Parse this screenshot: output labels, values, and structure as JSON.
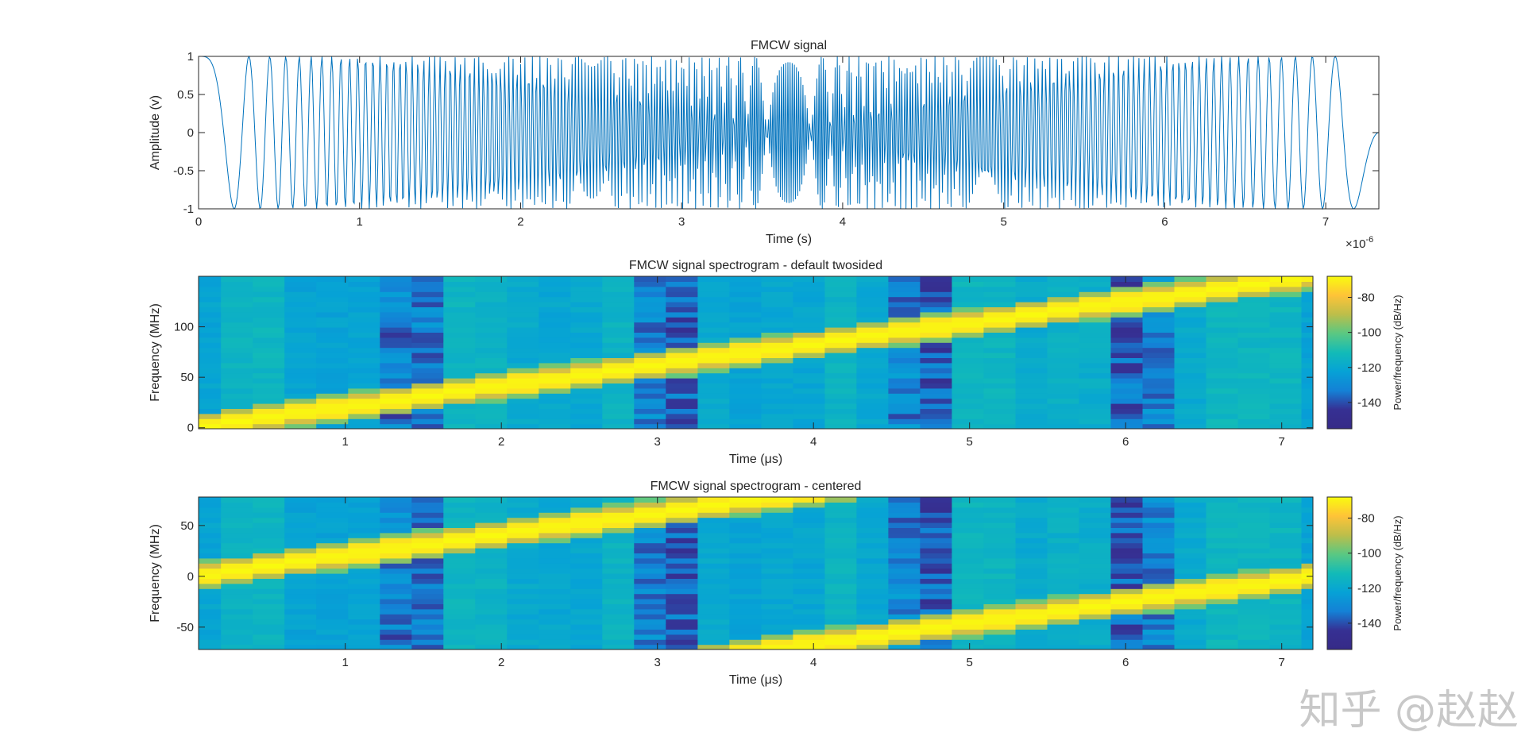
{
  "chart_data": [
    {
      "type": "line",
      "title": "FMCW signal",
      "xlabel": "Time (s)",
      "ylabel": "Amplitude (v)",
      "x_exponent_label": "×10",
      "x_exponent": "-6",
      "xlim": [
        0,
        7.33
      ],
      "ylim": [
        -1,
        1
      ],
      "xticks": [
        "0",
        "1",
        "2",
        "3",
        "4",
        "5",
        "6",
        "7"
      ],
      "yticks": [
        "-1",
        "-0.5",
        "0",
        "0.5",
        "1"
      ],
      "series_color": "#0072BD",
      "signal": {
        "kind": "linear chirp cosine",
        "start_freq_mhz": 0,
        "end_freq_mhz": 150,
        "duration_us": 7.33,
        "sample_rate_mhz": 150
      }
    },
    {
      "type": "heatmap",
      "title": "FMCW signal spectrogram - default twosided",
      "xlabel": "Time (μs)",
      "ylabel": "Frequency (MHz)",
      "xlim": [
        0.06,
        7.2
      ],
      "ylim": [
        -1,
        150
      ],
      "xticks": [
        "1",
        "2",
        "3",
        "4",
        "5",
        "6",
        "7"
      ],
      "yticks": [
        "0",
        "50",
        "100"
      ],
      "ridge": {
        "start_time_us": 0,
        "start_freq_mhz": 0,
        "end_time_us": 7.2,
        "end_freq_mhz": 150
      },
      "colorbar": {
        "label": "Power/frequency (dB/Hz)",
        "range": [
          -155,
          -68
        ],
        "ticks": [
          "-80",
          "-100",
          "-120",
          "-140"
        ],
        "colormap": "parula"
      }
    },
    {
      "type": "heatmap",
      "title": "FMCW signal spectrogram - centered",
      "xlabel": "Time (μs)",
      "ylabel": "Frequency (MHz)",
      "xlim": [
        0.06,
        7.2
      ],
      "ylim": [
        -72,
        78
      ],
      "xticks": [
        "1",
        "2",
        "3",
        "4",
        "5",
        "6",
        "7"
      ],
      "yticks": [
        "-50",
        "0",
        "50"
      ],
      "ridge": {
        "start_time_us": 0,
        "start_freq_mhz": 0,
        "end_time_us": 7.2,
        "end_freq_mhz": 150,
        "wrap_mhz": 75
      },
      "colorbar": {
        "label": "Power/frequency (dB/Hz)",
        "range": [
          -155,
          -68
        ],
        "ticks": [
          "-80",
          "-100",
          "-120",
          "-140"
        ],
        "colormap": "parula"
      }
    }
  ],
  "dark_columns_us": [
    1.35,
    1.6,
    2.95,
    3.2,
    4.6,
    4.8,
    5.95,
    6.2
  ],
  "watermark": "知乎 @赵赵"
}
